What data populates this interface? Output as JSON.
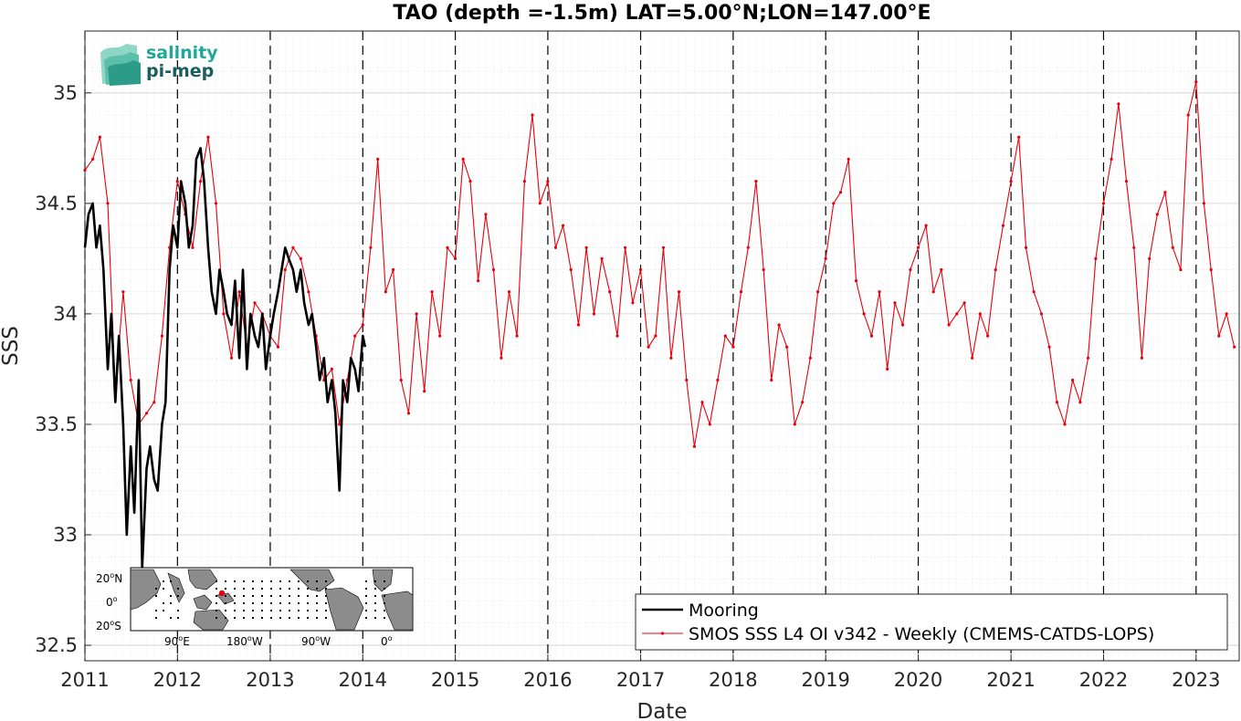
{
  "chart_data": {
    "type": "line",
    "title": "TAO (depth =-1.5m) LAT=5.00°N;LON=147.00°E",
    "xlabel": "Date",
    "ylabel": "SSS",
    "xlim": [
      "2011-01-01",
      "2023-06-20"
    ],
    "ylim": [
      32.43,
      35.28
    ],
    "x_tick_labels": [
      "2011",
      "2012",
      "2013",
      "2014",
      "2015",
      "2016",
      "2017",
      "2018",
      "2019",
      "2020",
      "2021",
      "2022",
      "2023"
    ],
    "y_tick_labels": [
      "32.5",
      "33",
      "33.5",
      "34",
      "34.5",
      "35"
    ],
    "y_ticks": [
      32.5,
      33,
      33.5,
      34,
      34.5,
      35
    ],
    "year_boundaries_dashed": true,
    "grid": true,
    "minor_grid": true,
    "legend_position": "bottom-right",
    "series": [
      {
        "name": "Mooring",
        "color": "#000000",
        "x": [
          "2011-01-01",
          "2011-01-15",
          "2011-02-01",
          "2011-02-15",
          "2011-03-01",
          "2011-03-15",
          "2011-04-01",
          "2011-04-15",
          "2011-05-01",
          "2011-05-15",
          "2011-06-01",
          "2011-06-15",
          "2011-07-01",
          "2011-07-15",
          "2011-08-01",
          "2011-08-15",
          "2011-09-01",
          "2011-09-15",
          "2011-10-01",
          "2011-10-15",
          "2011-11-01",
          "2011-11-15",
          "2011-12-01",
          "2011-12-15",
          "2012-01-01",
          "2012-01-15",
          "2012-02-01",
          "2012-02-15",
          "2012-03-01",
          "2012-03-15",
          "2012-04-01",
          "2012-04-15",
          "2012-05-01",
          "2012-05-15",
          "2012-06-01",
          "2012-06-15",
          "2012-07-01",
          "2012-07-15",
          "2012-08-01",
          "2012-08-15",
          "2012-09-01",
          "2012-09-15",
          "2012-10-01",
          "2012-10-15",
          "2012-11-01",
          "2012-11-15",
          "2012-12-01",
          "2012-12-15",
          "2013-01-01",
          "2013-01-15",
          "2013-02-01",
          "2013-02-15",
          "2013-03-01",
          "2013-03-15",
          "2013-04-01",
          "2013-04-15",
          "2013-05-01",
          "2013-05-15",
          "2013-06-01",
          "2013-06-15",
          "2013-07-01",
          "2013-07-15",
          "2013-08-01",
          "2013-08-15",
          "2013-09-01",
          "2013-09-15",
          "2013-10-01",
          "2013-10-15",
          "2013-11-01",
          "2013-11-15",
          "2013-12-01",
          "2013-12-15",
          "2014-01-01",
          "2014-01-10"
        ],
        "values": [
          34.3,
          34.45,
          34.5,
          34.3,
          34.4,
          34.2,
          33.75,
          34.0,
          33.6,
          33.9,
          33.5,
          33.0,
          33.4,
          33.1,
          33.7,
          32.85,
          33.3,
          33.4,
          33.25,
          33.2,
          33.5,
          33.6,
          34.2,
          34.4,
          34.3,
          34.6,
          34.5,
          34.3,
          34.4,
          34.7,
          34.75,
          34.6,
          34.3,
          34.1,
          34.0,
          34.2,
          34.1,
          34.0,
          33.95,
          34.15,
          33.8,
          34.2,
          33.75,
          34.0,
          33.9,
          33.85,
          34.0,
          33.75,
          33.9,
          34.0,
          34.1,
          34.2,
          34.3,
          34.25,
          34.2,
          34.1,
          34.2,
          34.05,
          33.95,
          34.0,
          33.85,
          33.7,
          33.8,
          33.6,
          33.7,
          33.55,
          33.2,
          33.7,
          33.6,
          33.8,
          33.75,
          33.65,
          33.9,
          33.85
        ]
      },
      {
        "name": "SMOS SSS L4 OI v342 - Weekly (CMEMS-CATDS-LOPS)",
        "color": "#e8000b",
        "x": [
          "2011-01-01",
          "2011-02-01",
          "2011-03-01",
          "2011-04-01",
          "2011-05-01",
          "2011-06-01",
          "2011-07-01",
          "2011-08-01",
          "2011-09-01",
          "2011-10-01",
          "2011-11-01",
          "2011-12-01",
          "2012-01-01",
          "2012-02-01",
          "2012-03-01",
          "2012-04-01",
          "2012-05-01",
          "2012-06-01",
          "2012-07-01",
          "2012-08-01",
          "2012-09-01",
          "2012-10-01",
          "2012-11-01",
          "2012-12-01",
          "2013-01-01",
          "2013-02-01",
          "2013-03-01",
          "2013-04-01",
          "2013-05-01",
          "2013-06-01",
          "2013-07-01",
          "2013-08-01",
          "2013-09-01",
          "2013-10-01",
          "2013-11-01",
          "2013-12-01",
          "2014-01-01",
          "2014-02-01",
          "2014-03-01",
          "2014-04-01",
          "2014-05-01",
          "2014-06-01",
          "2014-07-01",
          "2014-08-01",
          "2014-09-01",
          "2014-10-01",
          "2014-11-01",
          "2014-12-01",
          "2015-01-01",
          "2015-02-01",
          "2015-03-01",
          "2015-04-01",
          "2015-05-01",
          "2015-06-01",
          "2015-07-01",
          "2015-08-01",
          "2015-09-01",
          "2015-10-01",
          "2015-11-01",
          "2015-12-01",
          "2016-01-01",
          "2016-02-01",
          "2016-03-01",
          "2016-04-01",
          "2016-05-01",
          "2016-06-01",
          "2016-07-01",
          "2016-08-01",
          "2016-09-01",
          "2016-10-01",
          "2016-11-01",
          "2016-12-01",
          "2017-01-01",
          "2017-02-01",
          "2017-03-01",
          "2017-04-01",
          "2017-05-01",
          "2017-06-01",
          "2017-07-01",
          "2017-08-01",
          "2017-09-01",
          "2017-10-01",
          "2017-11-01",
          "2017-12-01",
          "2018-01-01",
          "2018-02-01",
          "2018-03-01",
          "2018-04-01",
          "2018-05-01",
          "2018-06-01",
          "2018-07-01",
          "2018-08-01",
          "2018-09-01",
          "2018-10-01",
          "2018-11-01",
          "2018-12-01",
          "2019-01-01",
          "2019-02-01",
          "2019-03-01",
          "2019-04-01",
          "2019-05-01",
          "2019-06-01",
          "2019-07-01",
          "2019-08-01",
          "2019-09-01",
          "2019-10-01",
          "2019-11-01",
          "2019-12-01",
          "2020-01-01",
          "2020-02-01",
          "2020-03-01",
          "2020-04-01",
          "2020-05-01",
          "2020-06-01",
          "2020-07-01",
          "2020-08-01",
          "2020-09-01",
          "2020-10-01",
          "2020-11-01",
          "2020-12-01",
          "2021-01-01",
          "2021-02-01",
          "2021-03-01",
          "2021-04-01",
          "2021-05-01",
          "2021-06-01",
          "2021-07-01",
          "2021-08-01",
          "2021-09-01",
          "2021-10-01",
          "2021-11-01",
          "2021-12-01",
          "2022-01-01",
          "2022-02-01",
          "2022-03-01",
          "2022-04-01",
          "2022-05-01",
          "2022-06-01",
          "2022-07-01",
          "2022-08-01",
          "2022-09-01",
          "2022-10-01",
          "2022-11-01",
          "2022-12-01",
          "2023-01-01",
          "2023-02-01",
          "2023-03-01",
          "2023-04-01",
          "2023-05-01",
          "2023-06-01"
        ],
        "values": [
          34.65,
          34.7,
          34.8,
          34.5,
          33.65,
          34.1,
          33.7,
          33.5,
          33.55,
          33.6,
          33.9,
          34.3,
          34.6,
          34.45,
          34.3,
          34.6,
          34.8,
          34.5,
          34.0,
          33.8,
          34.1,
          33.85,
          34.05,
          34.0,
          33.9,
          33.85,
          34.2,
          34.3,
          34.25,
          34.1,
          33.9,
          33.7,
          33.75,
          33.5,
          33.7,
          33.9,
          33.95,
          34.3,
          34.7,
          34.1,
          34.2,
          33.7,
          33.55,
          34.0,
          33.65,
          34.1,
          33.9,
          34.3,
          34.25,
          34.7,
          34.6,
          34.15,
          34.45,
          34.2,
          33.8,
          34.1,
          33.9,
          34.6,
          34.9,
          34.5,
          34.6,
          34.3,
          34.4,
          34.2,
          33.95,
          34.3,
          34.0,
          34.25,
          34.1,
          33.9,
          34.3,
          34.05,
          34.2,
          33.85,
          33.9,
          34.3,
          33.8,
          34.1,
          33.7,
          33.4,
          33.6,
          33.5,
          33.7,
          33.9,
          33.85,
          34.1,
          34.3,
          34.6,
          34.2,
          33.7,
          33.95,
          33.85,
          33.5,
          33.6,
          33.8,
          34.1,
          34.25,
          34.5,
          34.55,
          34.7,
          34.15,
          34.0,
          33.9,
          34.1,
          33.75,
          34.05,
          33.95,
          34.2,
          34.3,
          34.4,
          34.1,
          34.2,
          33.95,
          34.0,
          34.05,
          33.8,
          34.0,
          33.9,
          34.2,
          34.4,
          34.6,
          34.8,
          34.3,
          34.1,
          34.0,
          33.85,
          33.6,
          33.5,
          33.7,
          33.6,
          33.8,
          34.25,
          34.5,
          34.7,
          34.95,
          34.6,
          34.3,
          33.8,
          34.25,
          34.45,
          34.55,
          34.3,
          34.2,
          34.9,
          35.05,
          34.5,
          34.2,
          33.9,
          34.0,
          33.85
        ]
      }
    ]
  },
  "legend": {
    "entries": [
      "Mooring",
      "SMOS SSS L4 OI v342 - Weekly (CMEMS-CATDS-LOPS)"
    ]
  },
  "inset_map": {
    "y_labels": [
      "20",
      "0",
      "20"
    ],
    "y_units": [
      "N",
      "",
      "S"
    ],
    "x_labels": [
      "90",
      "180",
      "90",
      "0"
    ],
    "x_units": [
      "E",
      "W",
      "W",
      ""
    ],
    "degree_mark": "o",
    "land_color": "#8c8c8c",
    "marker_color": "#e8000b"
  },
  "logo": {
    "line1": "salinity",
    "line2": "pi-mep",
    "color1": "#1fa89a",
    "color2": "#1a5d5e"
  }
}
